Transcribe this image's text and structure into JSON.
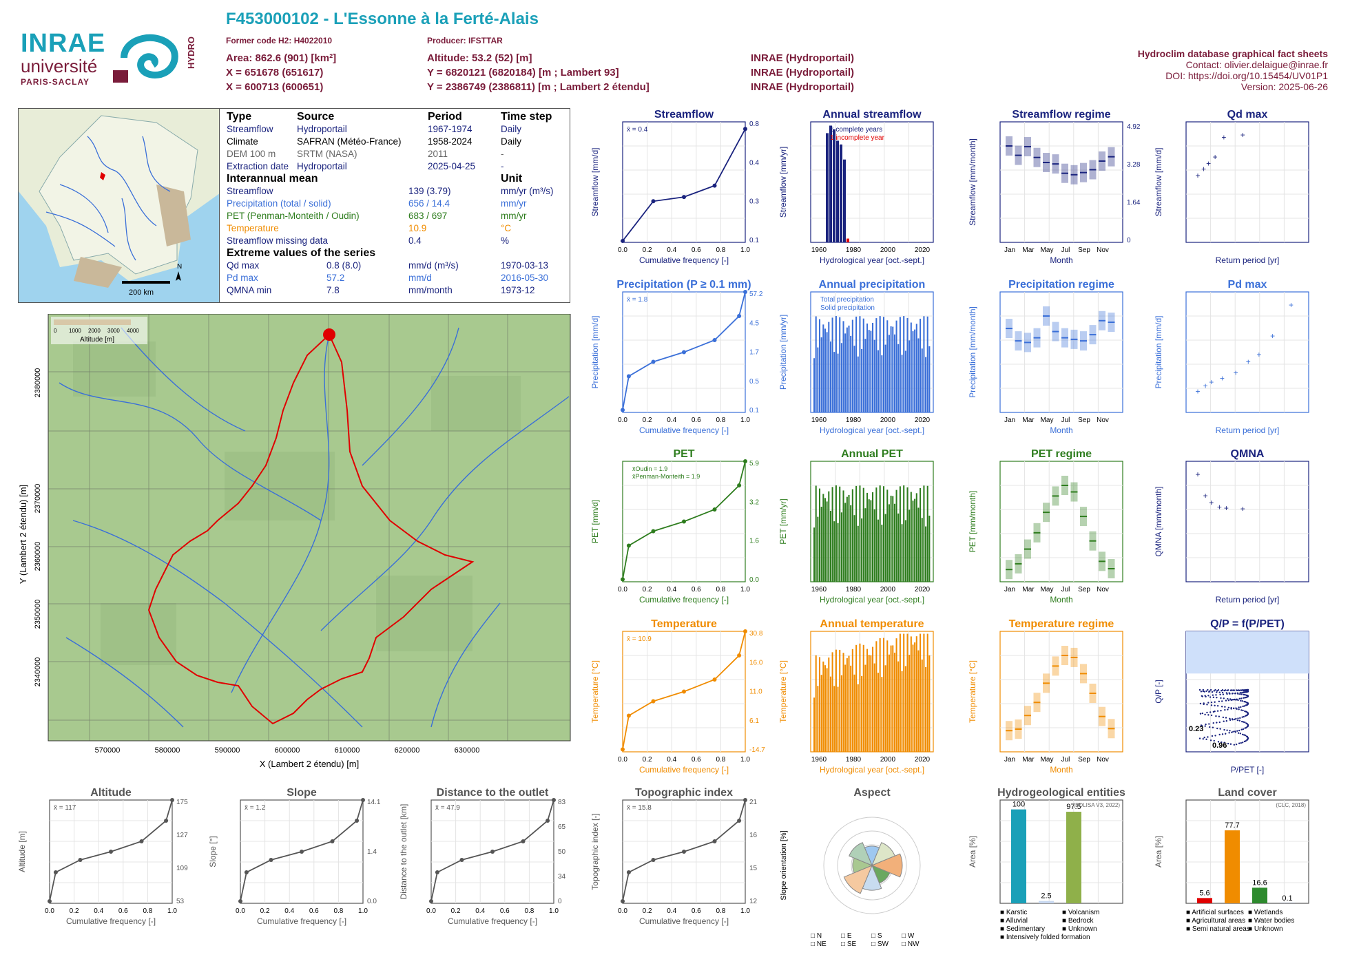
{
  "header": {
    "title": "F453000102 - L'Essonne à la Ferté-Alais",
    "former_code": "Former code H2: H4022010",
    "producer": "Producer: IFSTTAR",
    "area": "Area: 862.6 (901) [km²]",
    "altitude": "Altitude: 53.2 (52) [m]",
    "x93": "X = 651678 (651617)",
    "y93": "Y = 6820121 (6820184) [m ; Lambert 93]",
    "src1": "INRAE (Hydroportail)",
    "x2": "X = 600713 (600651)",
    "y2": "Y = 2386749 (2386811) [m ; Lambert 2 étendu]",
    "src2": "INRAE (Hydroportail)",
    "src3": "INRAE (Hydroportail)",
    "db_title": "Hydroclim database graphical fact sheets",
    "contact": "Contact: olivier.delaigue@inrae.fr",
    "doi": "DOI: https://doi.org/10.15454/UV01P1",
    "version": "Version: 2025-06-26",
    "logo_inrae": "INRAE",
    "logo_univ": "université",
    "logo_paris": "PARIS-SACLAY",
    "logo_hydro": "HYDRO"
  },
  "colors": {
    "maroon": "#7a1c3a",
    "teal": "#1aa0b8",
    "navy": "#1a237e",
    "blue": "#3a6fd8",
    "green": "#2e7d1e",
    "orange": "#f08c00",
    "grey": "#555555",
    "red": "#e00000"
  },
  "info_table": {
    "headers": [
      "Type",
      "Source",
      "Period",
      "Time step"
    ],
    "rows": [
      [
        "Streamflow",
        "Hydroportail",
        "1967-1974",
        "Daily"
      ],
      [
        "Climate",
        "SAFRAN (Météo-France)",
        "1958-2024",
        "Daily"
      ],
      [
        "DEM 100 m",
        "SRTM (NASA)",
        "2011",
        "-"
      ],
      [
        "Extraction date",
        "Hydroportail",
        "2025-04-25",
        "-"
      ]
    ],
    "interannual_title": "Interannual mean",
    "unit_title": "Unit",
    "interannual": [
      [
        "Streamflow",
        "139 (3.79)",
        "mm/yr (m³/s)"
      ],
      [
        "Precipitation (total / solid)",
        "656 / 14.4",
        "mm/yr"
      ],
      [
        "PET (Penman-Monteith / Oudin)",
        "683 / 697",
        "mm/yr"
      ],
      [
        "Temperature",
        "10.9",
        "°C"
      ],
      [
        "Streamflow missing data",
        "0.4",
        "%"
      ]
    ],
    "extreme_title": "Extreme values of the series",
    "extreme": [
      [
        "Qd max",
        "0.8 (8.0)",
        "mm/d (m³/s)",
        "1970-03-13"
      ],
      [
        "Pd max",
        "57.2",
        "mm/d",
        "2016-05-30"
      ],
      [
        "QMNA min",
        "7.8",
        "mm/month",
        "1973-12"
      ]
    ]
  },
  "france_map": {
    "north": "N",
    "scale": "200 km"
  },
  "catchment_map": {
    "legend_title": "Altitude [m]",
    "legend_ticks": [
      "0",
      "1000",
      "2000",
      "3000",
      "4000"
    ],
    "xlabel": "X (Lambert 2 étendu) [m]",
    "ylabel": "Y (Lambert 2 étendu) [m]",
    "xticks": [
      "570000",
      "580000",
      "590000",
      "600000",
      "610000",
      "620000",
      "630000"
    ],
    "yticks": [
      "2340000",
      "2350000",
      "2360000",
      "2370000",
      "2380000"
    ]
  },
  "chart_data": [
    {
      "id": "streamflow",
      "type": "line",
      "title": "Streamflow",
      "ylabel": "Streamflow [mm/d]",
      "xlabel": "Cumulative frequency [-]",
      "mean": "x̄ = 0.4",
      "right_ticks": [
        "0.8",
        "0.4",
        "0.3",
        "0.1"
      ],
      "ylim": [
        0,
        0.85
      ],
      "points": [
        [
          0,
          0.01
        ],
        [
          0.25,
          0.29
        ],
        [
          0.5,
          0.32
        ],
        [
          0.75,
          0.4
        ],
        [
          1.0,
          0.8
        ]
      ]
    },
    {
      "id": "annual_streamflow",
      "type": "bar",
      "title": "Annual streamflow",
      "ylabel": "Streamflow [mm/yr]",
      "xlabel": "Hydrological year [oct.-sept.]",
      "legend": [
        "6 complete years",
        "1 incomplete year"
      ],
      "x": [
        1968,
        1969,
        1970,
        1971,
        1972,
        1973,
        1974
      ],
      "values": [
        145,
        155,
        150,
        135,
        130,
        110,
        5
      ],
      "ylim": [
        0,
        160
      ],
      "xlim": [
        1958,
        2024
      ]
    },
    {
      "id": "streamflow_regime",
      "type": "box",
      "title": "Streamflow regime",
      "ylabel": "Streamflow [mm/month]",
      "xlabel": "Month",
      "categories": [
        "Jan",
        "Mar",
        "May",
        "Jul",
        "Sep",
        "Nov"
      ],
      "right_ticks": [
        "4.92",
        "3.28",
        "1.64",
        "0"
      ],
      "medians": [
        13.4,
        12.1,
        13.3,
        11.8,
        11.1,
        10.9,
        9.6,
        9.4,
        9.7,
        10.1,
        11.3,
        11.9
      ]
    },
    {
      "id": "qd_max",
      "type": "scatter",
      "title": "Qd max",
      "ylabel": "Streamflow [mm/d]",
      "xlabel": "Return period [yr]",
      "points": [
        [
          1.2,
          0.49
        ],
        [
          1.5,
          0.54
        ],
        [
          1.8,
          0.58
        ],
        [
          2.3,
          0.63
        ],
        [
          3.2,
          0.78
        ],
        [
          6.5,
          0.8
        ]
      ]
    },
    {
      "id": "precipitation",
      "type": "line",
      "title": "Precipitation (P ≥ 0.1 mm)",
      "ylabel": "Precipitation [mm/d]",
      "xlabel": "Cumulative frequency [-]",
      "mean": "x̄ = 1.8",
      "right_ticks": [
        "57.2",
        "4.5",
        "1.7",
        "0.5",
        "0.1"
      ]
    },
    {
      "id": "annual_precipitation",
      "type": "bar",
      "title": "Annual precipitation",
      "ylabel": "Precipitation [mm/yr]",
      "xlabel": "Hydrological year [oct.-sept.]",
      "legend": [
        "Total precipitation",
        "Solid precipitation"
      ]
    },
    {
      "id": "precipitation_regime",
      "type": "box",
      "title": "Precipitation regime",
      "ylabel": "Precipitation [mm/month]",
      "xlabel": "Month",
      "medians": [
        54,
        46,
        45,
        48,
        62,
        52,
        48,
        47,
        46,
        50,
        59,
        58
      ]
    },
    {
      "id": "pd_max",
      "type": "scatter",
      "title": "Pd max",
      "ylabel": "Precipitation [mm/d]",
      "xlabel": "Return period [yr]"
    },
    {
      "id": "pet",
      "type": "line",
      "title": "PET",
      "ylabel": "PET [mm/d]",
      "xlabel": "Cumulative frequency [-]",
      "legend": [
        "x̄Oudin = 1.9",
        "x̄Penman-Monteith = 1.9"
      ],
      "right_ticks": [
        "5.9",
        "3.2",
        "1.6",
        "0.0"
      ]
    },
    {
      "id": "annual_pet",
      "type": "bar",
      "title": "Annual PET",
      "ylabel": "PET [mm/yr]",
      "xlabel": "Hydrological year [oct.-sept.]"
    },
    {
      "id": "pet_regime",
      "type": "box",
      "title": "PET regime",
      "ylabel": "PET [mm/month]",
      "xlabel": "Month"
    },
    {
      "id": "qmna",
      "type": "scatter",
      "title": "QMNA",
      "ylabel": "QMNA [mm/month]",
      "xlabel": "Return period [yr]",
      "points": [
        [
          1.2,
          11.8
        ],
        [
          1.6,
          9.4
        ],
        [
          2.0,
          8.6
        ],
        [
          2.7,
          8.1
        ],
        [
          3.5,
          8.0
        ],
        [
          6.5,
          7.9
        ]
      ]
    },
    {
      "id": "temperature",
      "type": "line",
      "title": "Temperature",
      "ylabel": "Temperature [°C]",
      "xlabel": "Cumulative frequency [-]",
      "mean": "x̄ = 10.9",
      "right_ticks": [
        "30.8",
        "16.0",
        "11.0",
        "6.1",
        "-14.7"
      ]
    },
    {
      "id": "annual_temperature",
      "type": "bar",
      "title": "Annual temperature",
      "ylabel": "Temperature [°C]",
      "xlabel": "Hydrological year [oct.-sept.]"
    },
    {
      "id": "temperature_regime",
      "type": "box",
      "title": "Temperature regime",
      "ylabel": "Temperature [°C]",
      "xlabel": "Month",
      "medians": [
        4.2,
        4.5,
        7.2,
        9.8,
        13.6,
        17.0,
        19.1,
        18.7,
        15.5,
        11.6,
        7.0,
        4.6
      ]
    },
    {
      "id": "qp",
      "type": "scatter",
      "title": "Q/P = f(P/PET)",
      "ylabel": "Q/P [-]",
      "xlabel": "P/PET [-]",
      "labels": [
        "0.23",
        "0.96"
      ]
    },
    {
      "id": "altitude",
      "type": "line",
      "title": "Altitude",
      "ylabel": "Altitude [m]",
      "xlabel": "Cumulative frequency [-]",
      "mean": "x̄ = 117",
      "right_ticks": [
        "175",
        "127",
        "109",
        "53"
      ]
    },
    {
      "id": "slope",
      "type": "line",
      "title": "Slope",
      "ylabel": "Slope [°]",
      "xlabel": "Cumulative frequency [-]",
      "mean": "x̄ = 1.2",
      "right_ticks": [
        "14.1",
        "1.4",
        "0.0"
      ]
    },
    {
      "id": "distance",
      "type": "line",
      "title": "Distance to the outlet",
      "ylabel": "Distance to the outlet [km]",
      "xlabel": "Cumulative frequency [-]",
      "mean": "x̄ = 47.9",
      "right_ticks": [
        "83",
        "65",
        "50",
        "34",
        "0"
      ]
    },
    {
      "id": "topo",
      "type": "line",
      "title": "Topographic index",
      "ylabel": "Topographic index [-]",
      "xlabel": "Cumulative frequency [-]",
      "mean": "x̄ = 15.8",
      "right_ticks": [
        "21",
        "16",
        "15",
        "12"
      ]
    },
    {
      "id": "aspect",
      "type": "pie",
      "title": "Aspect",
      "ylabel": "Slope orientation [%]",
      "legend": [
        "N",
        "E",
        "S",
        "W",
        "NE",
        "SE",
        "SW",
        "NW"
      ]
    },
    {
      "id": "hydrogeology",
      "type": "bar",
      "title": "Hydrogeological entities",
      "ylabel": "Area [%]",
      "source": "(BDLISA V3, 2022)",
      "values": [
        100,
        2.5,
        97.5
      ],
      "legend": [
        "Karstic",
        "Volcanism",
        "Alluvial",
        "Bedrock",
        "Sedimentary",
        "Unknown",
        "Intensively folded formation"
      ]
    },
    {
      "id": "landcover",
      "type": "bar",
      "title": "Land cover",
      "ylabel": "Area [%]",
      "source": "(CLC, 2018)",
      "values": [
        5.6,
        77.7,
        16.6,
        0.1
      ],
      "legend": [
        "Artificial surfaces",
        "Wetlands",
        "Agricultural areas",
        "Water bodies",
        "Semi natural areas",
        "Unknown"
      ]
    }
  ]
}
